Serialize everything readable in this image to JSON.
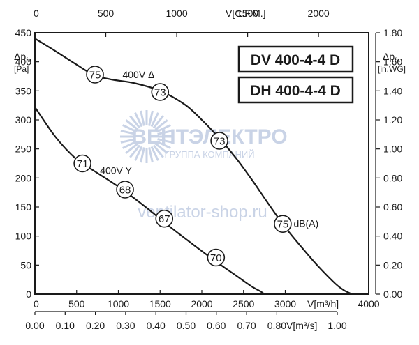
{
  "chart_data": {
    "type": "line",
    "models": [
      "DV 400-4-4 D",
      "DH 400-4-4 D"
    ],
    "x_bottom": {
      "label": "V[m³/h]",
      "range": [
        0,
        4000
      ],
      "ticks": [
        "0",
        "500",
        "1000",
        "1500",
        "2000",
        "2500",
        "3000",
        "4000"
      ]
    },
    "x_top": {
      "label": "V[C.F.M.]",
      "range": [
        0,
        2354
      ],
      "ticks": [
        "0",
        "500",
        "1000",
        "1500",
        "2000"
      ]
    },
    "x_secondary": {
      "label": "V[m³/s]",
      "range": [
        0,
        1.0
      ],
      "ticks": [
        "0.00",
        "0.10",
        "0.20",
        "0.30",
        "0.40",
        "0.50",
        "0.60",
        "0.70",
        "0.80",
        "1.00"
      ]
    },
    "y_left": {
      "label_main": "Δp",
      "label_sub": "fa",
      "unit": "[Pa]",
      "range": [
        0,
        450
      ],
      "ticks": [
        "0",
        "50",
        "100",
        "150",
        "200",
        "250",
        "300",
        "350",
        "400",
        "450"
      ]
    },
    "y_right": {
      "label_main": "Δp",
      "label_sub": "fa",
      "unit": "[in.WG]",
      "range": [
        0,
        1.8
      ],
      "ticks": [
        "0.00",
        "0.20",
        "0.40",
        "0.60",
        "0.80",
        "1.00",
        "1.20",
        "1.40",
        "1.60",
        "1.80"
      ]
    },
    "grid": false,
    "series": [
      {
        "name": "400V Δ",
        "x": [
          0,
          250,
          500,
          700,
          900,
          1200,
          1500,
          1800,
          2000,
          2200,
          2400,
          2600,
          2800,
          3000,
          3200,
          3400,
          3600,
          3700,
          3800
        ],
        "y": [
          440,
          418,
          395,
          378,
          370,
          363,
          350,
          326,
          300,
          270,
          236,
          197,
          155,
          115,
          80,
          47,
          18,
          7,
          0
        ]
      },
      {
        "name": "400V Y",
        "x": [
          0,
          250,
          500,
          700,
          1000,
          1300,
          1600,
          1900,
          2200,
          2400,
          2600,
          2700,
          2750
        ],
        "y": [
          322,
          270,
          232,
          213,
          185,
          153,
          118,
          85,
          53,
          33,
          13,
          5,
          0
        ]
      }
    ],
    "annotations": [
      {
        "text": "400V Δ",
        "x": 1050,
        "y": 378
      },
      {
        "text": "400V Y",
        "x": 780,
        "y": 213
      },
      {
        "text": "dB(A)",
        "x": 3100,
        "y": 122
      }
    ],
    "db_markers": [
      {
        "value": "75",
        "x": 720,
        "y": 378
      },
      {
        "value": "73",
        "x": 1500,
        "y": 348
      },
      {
        "value": "73",
        "x": 2210,
        "y": 264
      },
      {
        "value": "75",
        "x": 2970,
        "y": 121
      },
      {
        "value": "71",
        "x": 570,
        "y": 225
      },
      {
        "value": "68",
        "x": 1080,
        "y": 180
      },
      {
        "value": "67",
        "x": 1550,
        "y": 130
      },
      {
        "value": "70",
        "x": 2170,
        "y": 63
      }
    ]
  },
  "watermark": {
    "brand": "ВЕНТЭЛЕКТРО",
    "subtitle": "ГРУППА КОМПАНИЙ",
    "site": "ventilator-shop.ru"
  },
  "colors": {
    "line": "#1a1a1a",
    "watermark": "#c9d3e6"
  }
}
